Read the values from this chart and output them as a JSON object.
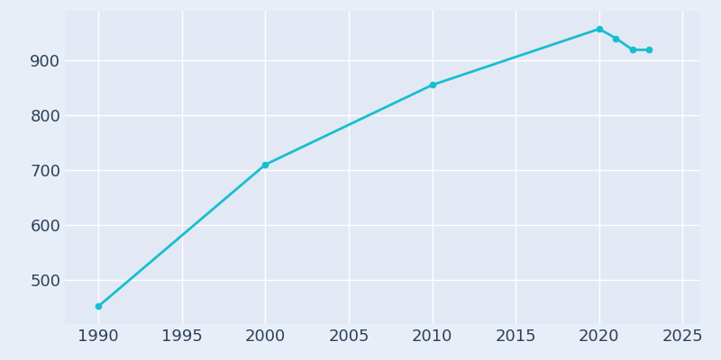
{
  "years": [
    1990,
    2000,
    2010,
    2020,
    2021,
    2022,
    2023
  ],
  "population": [
    452,
    710,
    855,
    957,
    940,
    919,
    919
  ],
  "line_color": "#17BECF",
  "marker_color": "#17BECF",
  "fig_bg_color": "#E8EEF7",
  "plot_bg_color": "#E2E9F4",
  "grid_color": "#FFFFFF",
  "tick_label_color": "#2E4057",
  "xlim": [
    1988,
    2026
  ],
  "ylim": [
    420,
    990
  ],
  "xticks": [
    1990,
    1995,
    2000,
    2005,
    2010,
    2015,
    2020,
    2025
  ],
  "yticks": [
    500,
    600,
    700,
    800,
    900
  ],
  "tick_fontsize": 13,
  "line_width": 2.0,
  "marker_size": 4.5,
  "figsize": [
    8.0,
    4.0
  ],
  "dpi": 100
}
